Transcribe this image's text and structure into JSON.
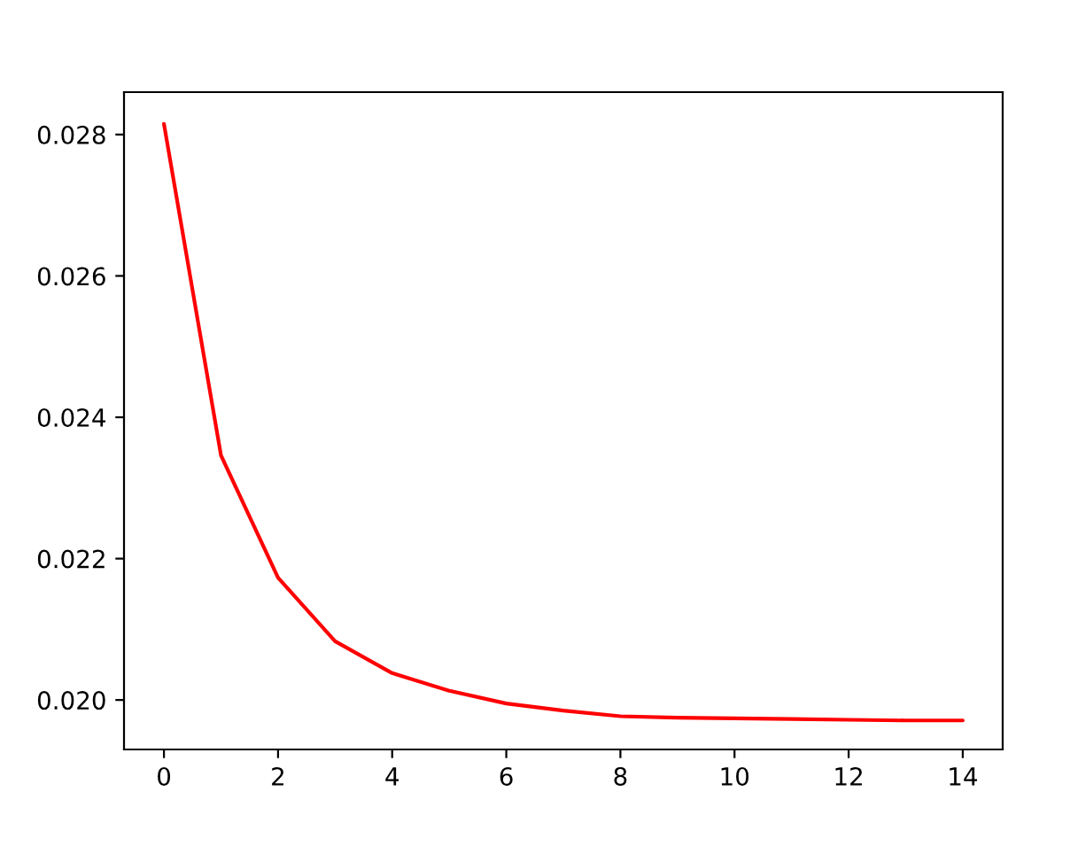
{
  "chart_data": {
    "type": "line",
    "x": [
      0,
      1,
      2,
      3,
      4,
      5,
      6,
      7,
      8,
      9,
      10,
      11,
      12,
      13,
      14
    ],
    "series": [
      {
        "color": "#ff0000",
        "values": [
          0.02815,
          0.02346,
          0.02173,
          0.02083,
          0.02038,
          0.02013,
          0.01995,
          0.01985,
          0.01977,
          0.01975,
          0.01974,
          0.01973,
          0.01972,
          0.01971,
          0.01971
        ]
      }
    ],
    "xlim": [
      -0.7,
      14.7
    ],
    "ylim": [
      0.0193,
      0.0286
    ],
    "xticks": [
      0,
      2,
      4,
      6,
      8,
      10,
      12,
      14
    ],
    "yticks": [
      {
        "value": 0.02,
        "label": "0.020"
      },
      {
        "value": 0.022,
        "label": "0.022"
      },
      {
        "value": 0.024,
        "label": "0.024"
      },
      {
        "value": 0.026,
        "label": "0.026"
      },
      {
        "value": 0.028,
        "label": "0.028"
      }
    ],
    "grid": false,
    "legend": false
  }
}
